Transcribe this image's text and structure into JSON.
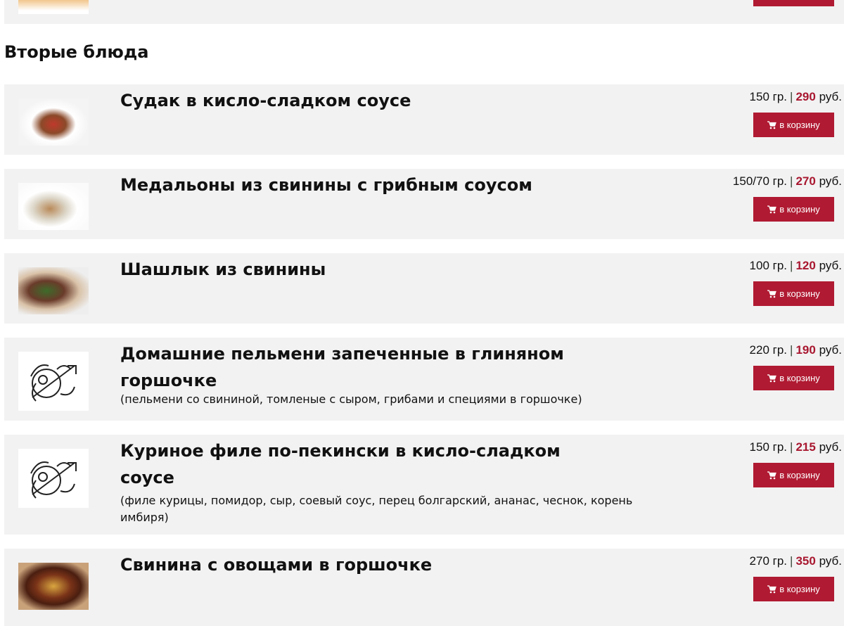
{
  "section_title": "Вторые блюда",
  "cart_label": "в корзину",
  "unit_weight": "гр.",
  "unit_currency": "руб.",
  "accent_color": "#b01a32",
  "items": [
    {
      "title": "Судак в кисло-сладком соусе",
      "weight": "150",
      "price": "290",
      "image": "photo"
    },
    {
      "title": "Медальоны из свинины с грибным соусом",
      "weight": "150/70",
      "price": "270",
      "image": "photo"
    },
    {
      "title": "Шашлык из свинины",
      "weight": "100",
      "price": "120",
      "image": "photo"
    },
    {
      "title": "Домашние пельмени запеченные в глиняном горшочке",
      "description": "(пельмени со свининой, томленые с сыром, грибами и специями в горшочке)",
      "weight": "220",
      "price": "190",
      "image": "emblem"
    },
    {
      "title": "Куриное филе по-пекински в кисло-сладком соусе",
      "description": "(филе курицы, помидор, сыр, соевый соус, перец болгарский, ананас, чеснок, корень имбиря)",
      "weight": "150",
      "price": "215",
      "image": "emblem"
    },
    {
      "title": "Свинина с овощами в горшочке",
      "weight": "270",
      "price": "350",
      "image": "photo"
    }
  ]
}
